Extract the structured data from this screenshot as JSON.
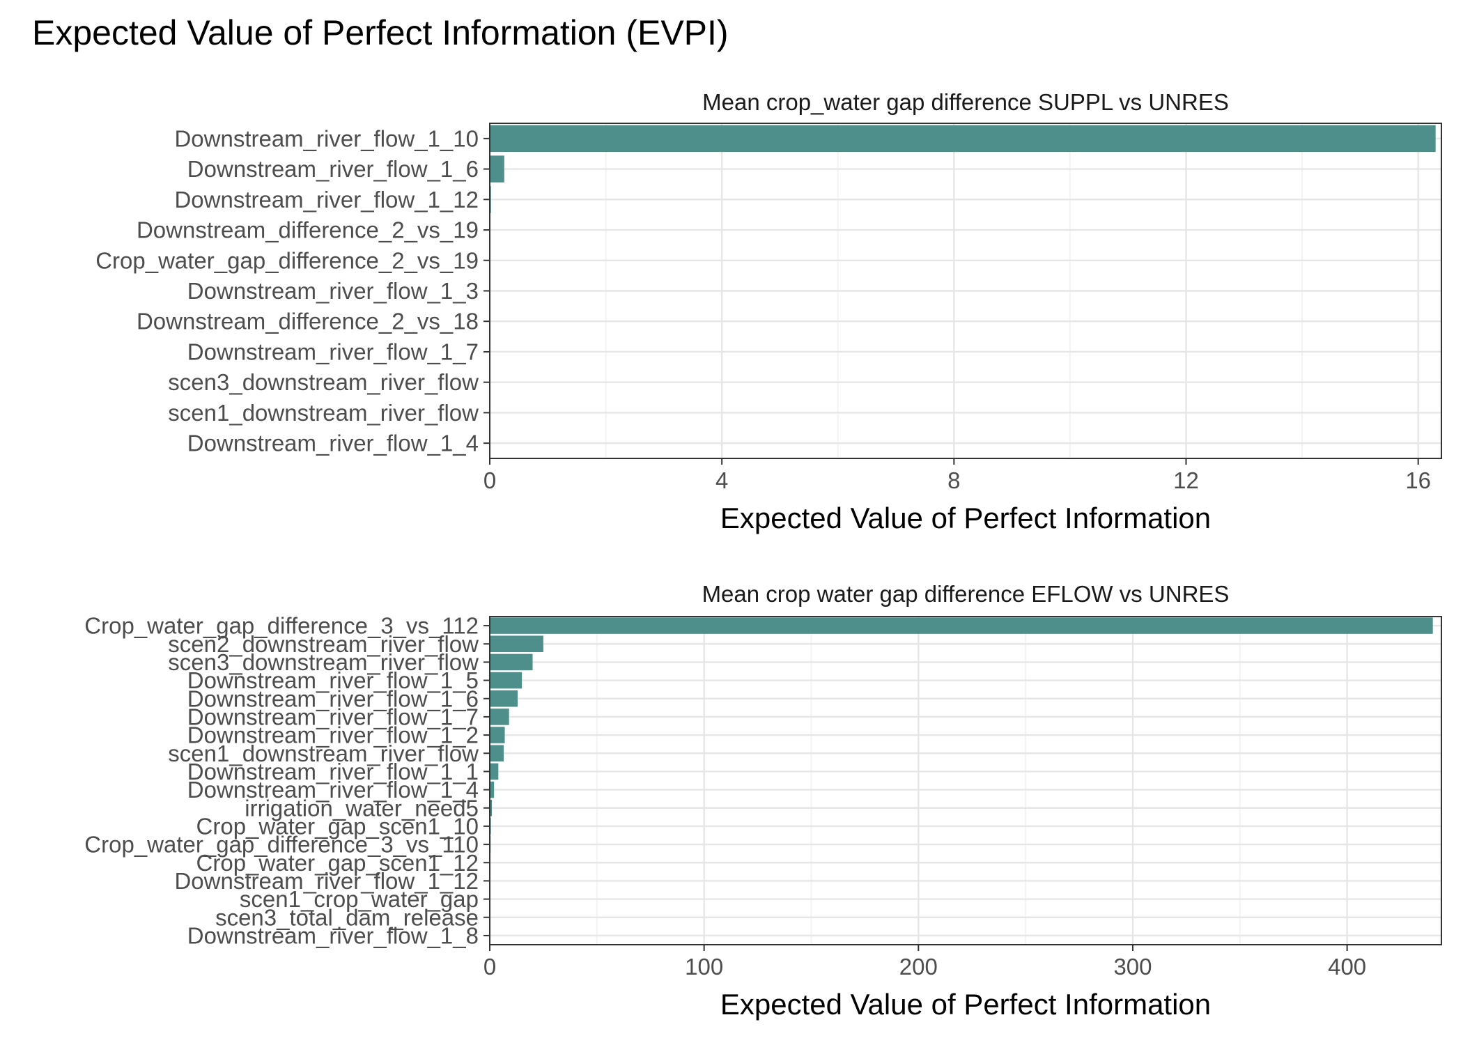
{
  "title": "Expected Value of Perfect Information (EVPI)",
  "colors": {
    "bar": "#4F8F8B",
    "grid_major": "#E6E6E6",
    "grid_minor": "#F3F3F3",
    "panel_border": "#333333",
    "text": "#4D4D4D"
  },
  "chart_data": [
    {
      "type": "bar",
      "orientation": "horizontal",
      "title": "Mean crop_water gap difference SUPPL vs UNRES",
      "xlabel": "Expected Value of Perfect Information",
      "ylabel": "",
      "xlim": [
        0,
        16.4
      ],
      "xticks": [
        0,
        4,
        8,
        12,
        16
      ],
      "grid": true,
      "categories": [
        "Downstream_river_flow_1_10",
        "Downstream_river_flow_1_6",
        "Downstream_river_flow_1_12",
        "Downstream_difference_2_vs_19",
        "Crop_water_gap_difference_2_vs_19",
        "Downstream_river_flow_1_3",
        "Downstream_difference_2_vs_18",
        "Downstream_river_flow_1_7",
        "scen3_downstream_river_flow",
        "scen1_downstream_river_flow",
        "Downstream_river_flow_1_4"
      ],
      "values": [
        16.3,
        0.25,
        0.02,
        0.01,
        0.01,
        0.01,
        0.01,
        0.005,
        0.005,
        0.004,
        0.003
      ]
    },
    {
      "type": "bar",
      "orientation": "horizontal",
      "title": "Mean crop water gap difference EFLOW vs UNRES",
      "xlabel": "Expected Value of Perfect Information",
      "ylabel": "",
      "xlim": [
        0,
        444
      ],
      "xticks": [
        0,
        100,
        200,
        300,
        400
      ],
      "grid": true,
      "categories": [
        "Crop_water_gap_difference_3_vs_112",
        "scen2_downstream_river_flow",
        "scen3_downstream_river_flow",
        "Downstream_river_flow_1_5",
        "Downstream_river_flow_1_6",
        "Downstream_river_flow_1_7",
        "Downstream_river_flow_1_2",
        "scen1_downstream_river_flow",
        "Downstream_river_flow_1_1",
        "Downstream_river_flow_1_4",
        "irrigation_water_need5",
        "Crop_water_gap_scen1_10",
        "Crop_water_gap_difference_3_vs_110",
        "Crop_water_gap_scen1_12",
        "Downstream_river_flow_1_12",
        "scen1_crop_water_gap",
        "scen3_total_dam_release",
        "Downstream_river_flow_1_8"
      ],
      "values": [
        440,
        25,
        20,
        15,
        13,
        9,
        7,
        6.5,
        4,
        2,
        1,
        0.5,
        0.4,
        0.3,
        0.3,
        0.2,
        0.2,
        0.1
      ]
    }
  ]
}
